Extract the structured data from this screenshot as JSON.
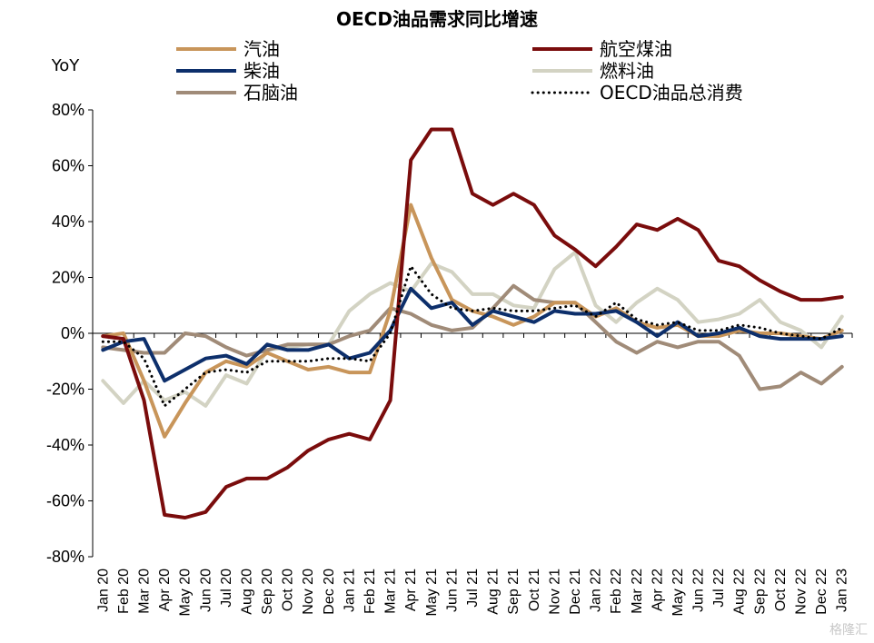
{
  "chart_data": {
    "type": "line",
    "title": "OECD油品需求同比增速",
    "ylabel": "YoY",
    "xlabel": "",
    "ylim": [
      -80,
      80
    ],
    "yticks": [
      "80%",
      "60%",
      "40%",
      "20%",
      "0%",
      "-20%",
      "-40%",
      "-60%",
      "-80%"
    ],
    "ytick_values": [
      80,
      60,
      40,
      20,
      0,
      -20,
      -40,
      -60,
      -80
    ],
    "grid": false,
    "legend_placement": "top",
    "categories": [
      "Jan 20",
      "Feb 20",
      "Mar 20",
      "Apr 20",
      "May 20",
      "Jun 20",
      "Jul 20",
      "Aug 20",
      "Sep 20",
      "Oct 20",
      "Nov 20",
      "Dec 20",
      "Jan 21",
      "Feb 21",
      "Mar 21",
      "Apr 21",
      "May 21",
      "Jun 21",
      "Jul 21",
      "Aug 21",
      "Sep 21",
      "Oct 21",
      "Nov 21",
      "Dec 21",
      "Jan 22",
      "Feb 22",
      "Mar 22",
      "Apr 22",
      "May 22",
      "Jun 22",
      "Jul 22",
      "Aug 22",
      "Sep 22",
      "Oct 22",
      "Nov 22",
      "Dec 22",
      "Jan 23"
    ],
    "series": [
      {
        "name": "汽油",
        "color": "#c8955a",
        "style": "solid",
        "values": [
          -1,
          0,
          -17,
          -37,
          -25,
          -14,
          -10,
          -12,
          -7,
          -10,
          -13,
          -12,
          -14,
          -14,
          8,
          46,
          27,
          12,
          8,
          6,
          3,
          6,
          11,
          11,
          6,
          9,
          4,
          2,
          3,
          -1,
          -1,
          1,
          0,
          0,
          -1,
          -2,
          1
        ]
      },
      {
        "name": "航空煤油",
        "color": "#7a0c0c",
        "style": "solid",
        "values": [
          -1,
          -2,
          -24,
          -65,
          -66,
          -64,
          -55,
          -52,
          -52,
          -48,
          -42,
          -38,
          -36,
          -38,
          -24,
          62,
          73,
          73,
          50,
          46,
          50,
          46,
          35,
          30,
          24,
          31,
          39,
          37,
          41,
          37,
          26,
          24,
          19,
          15,
          12,
          12,
          13
        ]
      },
      {
        "name": "柴油",
        "color": "#0d2f6b",
        "style": "solid",
        "values": [
          -6,
          -3,
          -2,
          -17,
          -13,
          -9,
          -8,
          -11,
          -4,
          -6,
          -6,
          -4,
          -9,
          -7,
          1,
          16,
          9,
          11,
          3,
          8,
          6,
          4,
          8,
          7,
          7,
          8,
          4,
          -1,
          4,
          -1,
          0,
          2,
          -1,
          -2,
          -2,
          -2,
          -1
        ]
      },
      {
        "name": "燃料油",
        "color": "#d3d3c3",
        "style": "solid",
        "values": [
          -17,
          -25,
          -17,
          -24,
          -21,
          -26,
          -15,
          -18,
          -6,
          -5,
          -4,
          -4,
          8,
          14,
          18,
          15,
          25,
          22,
          14,
          14,
          10,
          9,
          23,
          29,
          10,
          4,
          11,
          16,
          12,
          4,
          5,
          7,
          12,
          4,
          1,
          -5,
          6
        ]
      },
      {
        "name": "石脑油",
        "color": "#a08b78",
        "style": "solid",
        "values": [
          -5,
          -6,
          -7,
          -7,
          0,
          -1,
          -5,
          -8,
          -6,
          -4,
          -4,
          -4,
          -1,
          1,
          9,
          7,
          3,
          1,
          2,
          9,
          17,
          12,
          11,
          11,
          4,
          -3,
          -7,
          -3,
          -5,
          -3,
          -3,
          -8,
          -20,
          -19,
          -14,
          -18,
          -12
        ]
      },
      {
        "name": "OECD油品总消费",
        "color": "#000000",
        "style": "dotted",
        "values": [
          -3,
          -3,
          -9,
          -26,
          -20,
          -14,
          -13,
          -14,
          -10,
          -10,
          -10,
          -9,
          -9,
          -10,
          0,
          24,
          14,
          9,
          8,
          9,
          8,
          8,
          9,
          10,
          6,
          11,
          5,
          3,
          4,
          1,
          1,
          3,
          2,
          0,
          -1,
          -2,
          2
        ]
      }
    ],
    "watermark": "格隆汇"
  }
}
